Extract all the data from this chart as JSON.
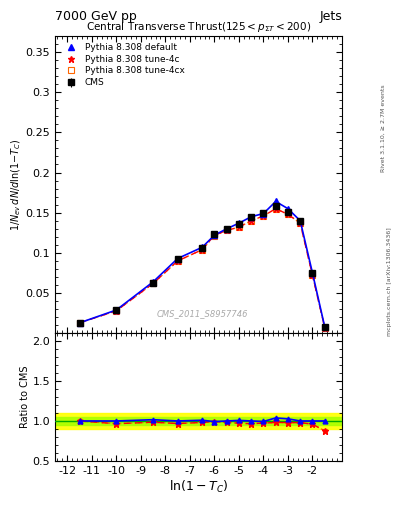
{
  "title_top": "7000 GeV pp",
  "title_right": "Jets",
  "plot_title": "Central Transverse Thrust(125 < p_{#varSigmaT} < 200)",
  "plot_title_display": "Central Transverse Thrust(125 < p∑T < 200)",
  "watermark": "CMS_2011_S8957746",
  "right_label": "Rivet 3.1.10, ≥ 2.7M events",
  "url_label": "mcplots.cern.ch [arXiv:1306.3436]",
  "ylabel_main": "1/Nₑᵥ dN/dℓn(1-T_C)",
  "ylabel_ratio": "Ratio to CMS",
  "xlabel": "ln(1-T_C)",
  "xlim": [
    -12.5,
    -1.0
  ],
  "ylim_main": [
    0.0,
    0.37
  ],
  "ylim_ratio": [
    0.5,
    2.1
  ],
  "yticks_main": [
    0.0,
    0.05,
    0.1,
    0.15,
    0.2,
    0.25,
    0.3,
    0.35
  ],
  "yticks_ratio": [
    0.5,
    1.0,
    1.5,
    2.0
  ],
  "xticks": [
    -12,
    -11,
    -10,
    -9,
    -8,
    -7,
    -6,
    -5,
    -4,
    -3,
    -2
  ],
  "cms_x": [
    -11.5,
    -10.0,
    -8.5,
    -7.5,
    -6.5,
    -6.0,
    -5.5,
    -5.0,
    -4.5,
    -4.0,
    -3.5,
    -3.0,
    -2.5,
    -2.0,
    -1.5
  ],
  "cms_y": [
    0.013,
    0.029,
    0.063,
    0.093,
    0.106,
    0.123,
    0.13,
    0.136,
    0.145,
    0.15,
    0.158,
    0.151,
    0.14,
    0.075,
    0.008
  ],
  "cms_yerr": [
    0.001,
    0.001,
    0.002,
    0.002,
    0.002,
    0.002,
    0.002,
    0.002,
    0.002,
    0.003,
    0.003,
    0.003,
    0.003,
    0.003,
    0.001
  ],
  "pythia_default_x": [
    -11.5,
    -10.0,
    -8.5,
    -7.5,
    -6.5,
    -6.0,
    -5.5,
    -5.0,
    -4.5,
    -4.0,
    -3.5,
    -3.0,
    -2.5,
    -2.0,
    -1.5
  ],
  "pythia_default_y": [
    0.013,
    0.029,
    0.064,
    0.093,
    0.107,
    0.122,
    0.13,
    0.137,
    0.145,
    0.149,
    0.164,
    0.155,
    0.14,
    0.075,
    0.008
  ],
  "pythia_4c_x": [
    -11.5,
    -10.0,
    -8.5,
    -7.5,
    -6.5,
    -6.0,
    -5.5,
    -5.0,
    -4.5,
    -4.0,
    -3.5,
    -3.0,
    -2.5,
    -2.0,
    -1.5
  ],
  "pythia_4c_y": [
    0.013,
    0.028,
    0.062,
    0.09,
    0.104,
    0.122,
    0.128,
    0.132,
    0.14,
    0.146,
    0.155,
    0.148,
    0.137,
    0.072,
    0.007
  ],
  "pythia_4cx_x": [
    -11.5,
    -10.0,
    -8.5,
    -7.5,
    -6.5,
    -6.0,
    -5.5,
    -5.0,
    -4.5,
    -4.0,
    -3.5,
    -3.0,
    -2.5,
    -2.0,
    -1.5
  ],
  "pythia_4cx_y": [
    0.013,
    0.028,
    0.062,
    0.09,
    0.104,
    0.121,
    0.128,
    0.132,
    0.14,
    0.146,
    0.155,
    0.148,
    0.137,
    0.072,
    0.007
  ],
  "color_cms": "#000000",
  "color_default": "#0000ff",
  "color_4c": "#ff0000",
  "color_4cx": "#ff6600",
  "bg_color": "#ffffff",
  "ratio_band_green": "#aaff00",
  "ratio_band_yellow": "#ffff00",
  "ratio_line_color": "#00aa00"
}
